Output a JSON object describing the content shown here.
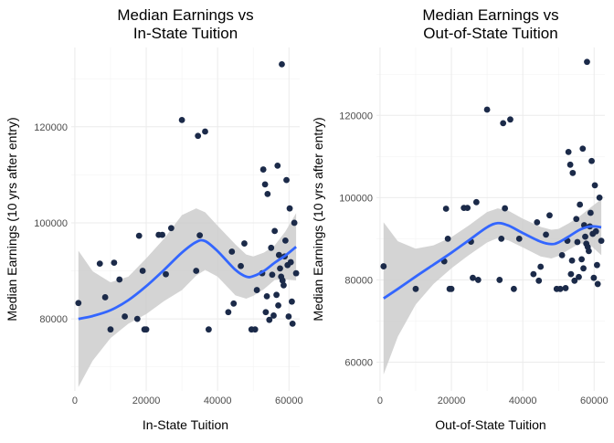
{
  "colors": {
    "point": "#1b2a49",
    "smooth": "#3366ff",
    "band": "#cccccc",
    "background": "#ffffff",
    "grid": "#ebebeb"
  },
  "chart_data": [
    {
      "type": "scatter",
      "title": [
        "Median Earnings vs",
        "In-State Tuition"
      ],
      "xlabel": "In-State Tuition",
      "ylabel": "Median Earnings (10 yrs after entry)",
      "xlim": [
        -1000,
        63000
      ],
      "ylim": [
        65000,
        136500
      ],
      "xticks": [
        0,
        20000,
        40000,
        60000
      ],
      "xtick_labels": [
        "0",
        "20000",
        "40000",
        "60000"
      ],
      "yticks": [
        80000,
        100000,
        120000
      ],
      "ytick_labels": [
        "80000",
        "100000",
        "120000"
      ],
      "grid": true,
      "legend": "none",
      "points": [
        [
          1000,
          83300
        ],
        [
          7000,
          91500
        ],
        [
          8500,
          84500
        ],
        [
          10000,
          77800
        ],
        [
          11000,
          91700
        ],
        [
          12500,
          88200
        ],
        [
          14000,
          80500
        ],
        [
          17500,
          80000
        ],
        [
          18000,
          97300
        ],
        [
          19000,
          90000
        ],
        [
          19500,
          77800
        ],
        [
          20000,
          77800
        ],
        [
          23500,
          97500
        ],
        [
          24500,
          97500
        ],
        [
          25500,
          89300
        ],
        [
          27000,
          98900
        ],
        [
          30000,
          121400
        ],
        [
          34000,
          90000
        ],
        [
          34500,
          118100
        ],
        [
          35000,
          97400
        ],
        [
          36500,
          119000
        ],
        [
          37500,
          77800
        ],
        [
          43000,
          81400
        ],
        [
          44000,
          94000
        ],
        [
          44500,
          83200
        ],
        [
          46500,
          91000
        ],
        [
          47500,
          95700
        ],
        [
          49500,
          77800
        ],
        [
          50500,
          77800
        ],
        [
          51000,
          86000
        ],
        [
          52500,
          89500
        ],
        [
          52800,
          111100
        ],
        [
          53300,
          108000
        ],
        [
          53500,
          81400
        ],
        [
          53800,
          84700
        ],
        [
          54000,
          106000
        ],
        [
          54500,
          79800
        ],
        [
          55000,
          94800
        ],
        [
          55300,
          89200
        ],
        [
          55700,
          80700
        ],
        [
          56000,
          98300
        ],
        [
          56500,
          85000
        ],
        [
          56800,
          111900
        ],
        [
          57000,
          82800
        ],
        [
          57200,
          93300
        ],
        [
          57500,
          90500
        ],
        [
          57800,
          88800
        ],
        [
          58000,
          133000
        ],
        [
          58200,
          88000
        ],
        [
          58500,
          87000
        ],
        [
          58800,
          93000
        ],
        [
          59000,
          96300
        ],
        [
          59300,
          108900
        ],
        [
          59600,
          91200
        ],
        [
          59900,
          80500
        ],
        [
          60200,
          103000
        ],
        [
          60500,
          91800
        ],
        [
          60800,
          83600
        ],
        [
          61000,
          79000
        ],
        [
          61500,
          100000
        ],
        [
          62000,
          89500
        ]
      ],
      "smooth": {
        "x": [
          1000,
          5000,
          10000,
          15000,
          20000,
          25000,
          30000,
          34000,
          36500,
          40000,
          45000,
          48000,
          50000,
          53000,
          56000,
          59000,
          62000
        ],
        "y": [
          80000,
          80600,
          81800,
          83900,
          86800,
          90200,
          93800,
          96000,
          96200,
          94100,
          90200,
          88800,
          88900,
          90000,
          91700,
          93200,
          95000
        ],
        "lower": [
          65800,
          71300,
          76000,
          79000,
          81000,
          83700,
          86000,
          89000,
          90200,
          88800,
          84900,
          84200,
          84800,
          86200,
          88100,
          88200,
          88000
        ],
        "upper": [
          94200,
          89900,
          87600,
          88800,
          92600,
          96700,
          101600,
          103000,
          102200,
          99400,
          95500,
          93400,
          93000,
          93800,
          95300,
          98200,
          102000
        ]
      }
    },
    {
      "type": "scatter",
      "title": [
        "Median Earnings vs",
        "Out-of-State Tuition"
      ],
      "xlabel": "Out-of-State Tuition",
      "ylabel": "Median Earnings (10 yrs after entry)",
      "xlim": [
        -1000,
        63000
      ],
      "ylim": [
        53000,
        136500
      ],
      "xticks": [
        0,
        20000,
        40000,
        60000
      ],
      "xtick_labels": [
        "0",
        "20000",
        "40000",
        "60000"
      ],
      "yticks": [
        60000,
        80000,
        100000,
        120000
      ],
      "ytick_labels": [
        "60000",
        "80000",
        "100000",
        "120000"
      ],
      "grid": true,
      "legend": "none",
      "points": [
        [
          1000,
          83300
        ],
        [
          10000,
          77800
        ],
        [
          18000,
          84500
        ],
        [
          18500,
          97300
        ],
        [
          19000,
          90000
        ],
        [
          19500,
          77800
        ],
        [
          20000,
          77800
        ],
        [
          23500,
          97500
        ],
        [
          24500,
          97500
        ],
        [
          25500,
          89300
        ],
        [
          26000,
          80500
        ],
        [
          27000,
          98900
        ],
        [
          27500,
          80000
        ],
        [
          30000,
          121400
        ],
        [
          33500,
          80000
        ],
        [
          34000,
          90000
        ],
        [
          34500,
          118100
        ],
        [
          35000,
          97400
        ],
        [
          36500,
          119000
        ],
        [
          37500,
          77800
        ],
        [
          39000,
          90000
        ],
        [
          43000,
          81400
        ],
        [
          44000,
          94000
        ],
        [
          44500,
          79800
        ],
        [
          45000,
          83200
        ],
        [
          46500,
          91000
        ],
        [
          47500,
          95700
        ],
        [
          49500,
          77800
        ],
        [
          50500,
          77800
        ],
        [
          51000,
          86000
        ],
        [
          52000,
          78000
        ],
        [
          52500,
          89500
        ],
        [
          52800,
          111100
        ],
        [
          53300,
          108000
        ],
        [
          53500,
          81400
        ],
        [
          53800,
          84700
        ],
        [
          54000,
          106000
        ],
        [
          54500,
          79800
        ],
        [
          55000,
          94800
        ],
        [
          55300,
          89200
        ],
        [
          55700,
          80700
        ],
        [
          56000,
          98300
        ],
        [
          56500,
          85000
        ],
        [
          56800,
          111900
        ],
        [
          57000,
          82800
        ],
        [
          57200,
          93300
        ],
        [
          57500,
          90500
        ],
        [
          57800,
          88800
        ],
        [
          58000,
          133000
        ],
        [
          58200,
          88000
        ],
        [
          58500,
          87000
        ],
        [
          58800,
          93000
        ],
        [
          59000,
          96300
        ],
        [
          59300,
          108900
        ],
        [
          59600,
          91200
        ],
        [
          59900,
          80500
        ],
        [
          60200,
          103000
        ],
        [
          60500,
          91800
        ],
        [
          60800,
          83600
        ],
        [
          61000,
          79000
        ],
        [
          61500,
          100000
        ],
        [
          62000,
          89500
        ]
      ],
      "smooth": {
        "x": [
          1000,
          5000,
          10000,
          15000,
          20000,
          25000,
          30000,
          33000,
          36000,
          40000,
          45000,
          48000,
          50000,
          53000,
          56000,
          59000,
          62000
        ],
        "y": [
          75500,
          77800,
          80800,
          83700,
          86600,
          89700,
          92800,
          93800,
          93200,
          91400,
          89300,
          88700,
          89100,
          90600,
          92200,
          93000,
          92800
        ],
        "lower": [
          57000,
          66200,
          74000,
          79000,
          82800,
          86100,
          89100,
          90200,
          89600,
          87900,
          85700,
          85200,
          85800,
          87400,
          88900,
          88400,
          86000
        ],
        "upper": [
          94000,
          89400,
          87600,
          88400,
          90400,
          93300,
          96500,
          97400,
          96800,
          94900,
          92900,
          92200,
          92400,
          93800,
          95500,
          97600,
          99600
        ]
      }
    }
  ]
}
